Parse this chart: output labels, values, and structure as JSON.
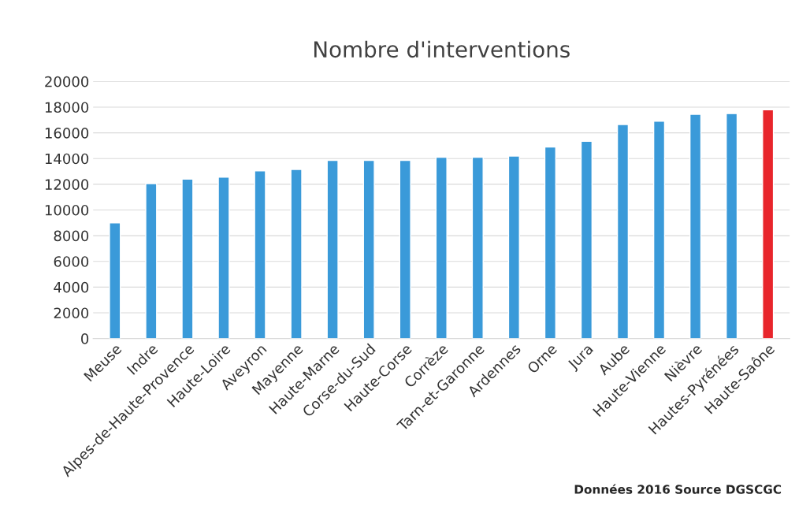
{
  "chart_data": {
    "type": "bar",
    "title": "Nombre d'interventions",
    "categories": [
      "Meuse",
      "Indre",
      "Alpes-de-Haute-Provence",
      "Haute-Loire",
      "Aveyron",
      "Mayenne",
      "Haute-Marne",
      "Corse-du-Sud",
      "Haute-Corse",
      "Corrèze",
      "Tarn-et-Garonne",
      "Ardennes",
      "Orne",
      "Jura",
      "Aube",
      "Haute-Vienne",
      "Nièvre",
      "Hautes-Pyrénées",
      "Haute-Saône"
    ],
    "values": [
      9000,
      12050,
      12400,
      12550,
      13050,
      13150,
      13850,
      13850,
      13850,
      14100,
      14100,
      14200,
      14900,
      15350,
      16650,
      16900,
      17450,
      17500,
      17800
    ],
    "colors": [
      "#3a9ad9",
      "#3a9ad9",
      "#3a9ad9",
      "#3a9ad9",
      "#3a9ad9",
      "#3a9ad9",
      "#3a9ad9",
      "#3a9ad9",
      "#3a9ad9",
      "#3a9ad9",
      "#3a9ad9",
      "#3a9ad9",
      "#3a9ad9",
      "#3a9ad9",
      "#3a9ad9",
      "#3a9ad9",
      "#3a9ad9",
      "#3a9ad9",
      "#e8252b"
    ],
    "ylim": [
      0,
      20000
    ],
    "yticks": [
      0,
      2000,
      4000,
      6000,
      8000,
      10000,
      12000,
      14000,
      16000,
      18000,
      20000
    ],
    "grid": "y",
    "legend": false,
    "annotations": [
      "Données 2016 Source DGSCGC"
    ]
  }
}
